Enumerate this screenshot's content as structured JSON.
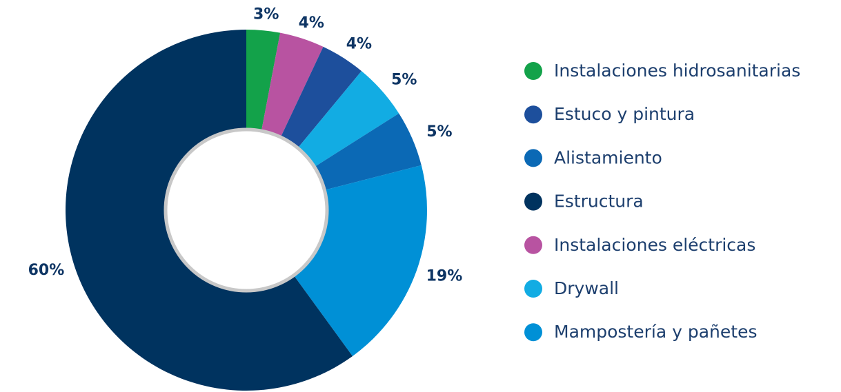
{
  "chart_data": {
    "type": "donut",
    "categories": [
      "Instalaciones hidrosanitarias",
      "Estuco y pintura",
      "Alistamiento",
      "Estructura",
      "Instalaciones eléctricas",
      "Drywall",
      "Mampostería y pañetes"
    ],
    "values": [
      3,
      4,
      5,
      60,
      4,
      5,
      19
    ],
    "value_labels": [
      "3%",
      "4%",
      "5%",
      "60%",
      "4%",
      "5%",
      "19%"
    ],
    "colors": [
      "#13a24a",
      "#1d4f9c",
      "#0b69b5",
      "#00335f",
      "#b853a1",
      "#12ace3",
      "#0090d6"
    ],
    "legend": "right"
  }
}
